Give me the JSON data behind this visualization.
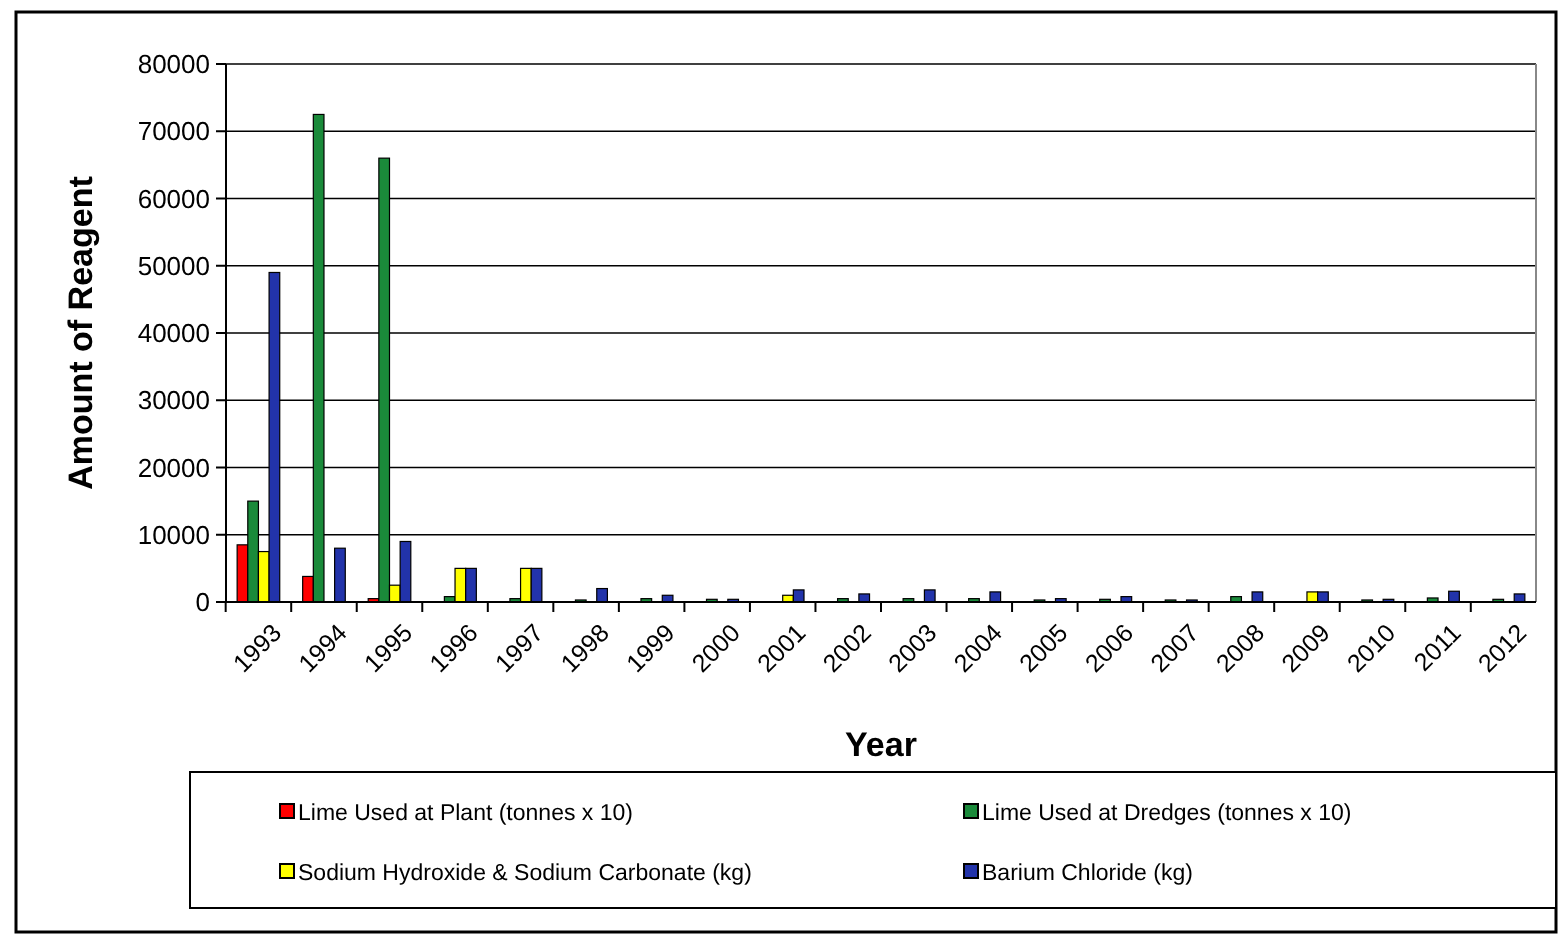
{
  "chart_data": {
    "type": "bar",
    "xlabel": "Year",
    "ylabel": "Amount of Reagent",
    "categories": [
      "1993",
      "1994",
      "1995",
      "1996",
      "1997",
      "1998",
      "1999",
      "2000",
      "2001",
      "2002",
      "2003",
      "2004",
      "2005",
      "2006",
      "2007",
      "2008",
      "2009",
      "2010",
      "2011",
      "2012"
    ],
    "series": [
      {
        "name": "Lime Used at Plant (tonnes x 10)",
        "color": "#ff0000",
        "values": [
          8500,
          3800,
          500,
          0,
          0,
          0,
          0,
          0,
          0,
          0,
          0,
          0,
          0,
          0,
          0,
          0,
          0,
          0,
          0,
          0
        ]
      },
      {
        "name": "Lime Used at Dredges (tonnes x 10)",
        "color": "#1a8a3a",
        "values": [
          15000,
          72500,
          66000,
          800,
          500,
          300,
          500,
          400,
          0,
          500,
          500,
          500,
          300,
          400,
          300,
          800,
          0,
          300,
          600,
          400
        ]
      },
      {
        "name": "Sodium Hydroxide & Sodium Carbonate (kg)",
        "color": "#ffff00",
        "values": [
          7500,
          0,
          2500,
          5000,
          5000,
          0,
          0,
          0,
          1000,
          0,
          0,
          0,
          0,
          0,
          0,
          0,
          1500,
          0,
          0,
          0
        ]
      },
      {
        "name": "Barium Chloride (kg)",
        "color": "#2233aa",
        "values": [
          49000,
          8000,
          9000,
          5000,
          5000,
          2000,
          1000,
          400,
          1800,
          1200,
          1800,
          1500,
          500,
          800,
          300,
          1500,
          1500,
          400,
          1600,
          1200
        ]
      }
    ],
    "ylim": [
      0,
      80000
    ],
    "yticks": [
      0,
      10000,
      20000,
      30000,
      40000,
      50000,
      60000,
      70000,
      80000
    ],
    "grid": "y",
    "legend": "bottom"
  }
}
